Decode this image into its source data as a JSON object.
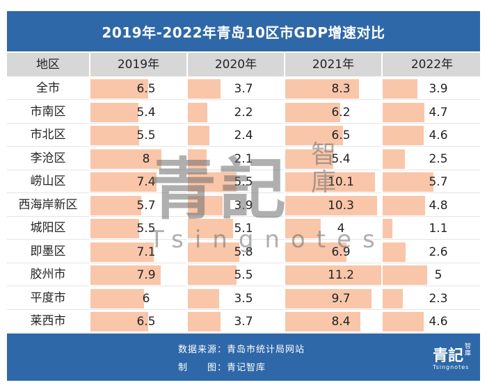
{
  "title": "2019年-2022年青岛10区市GDP增速对比",
  "header": {
    "district": "地区",
    "years": [
      "2019年",
      "2020年",
      "2021年",
      "2022年"
    ]
  },
  "chart_data": {
    "type": "table",
    "title": "2019年-2022年青岛10区市GDP增速对比",
    "columns": [
      "地区",
      "2019年",
      "2020年",
      "2021年",
      "2022年"
    ],
    "categories": [
      "全市",
      "市南区",
      "市北区",
      "李沧区",
      "崂山区",
      "西海岸新区",
      "城阳区",
      "即墨区",
      "胶州市",
      "平度市",
      "莱西市"
    ],
    "series": [
      {
        "name": "2019年",
        "values": [
          "6.5",
          "5.4",
          "5.5",
          "8",
          "7.4",
          "5.7",
          "5.5",
          "7.1",
          "7.9",
          "6",
          "6.5"
        ]
      },
      {
        "name": "2020年",
        "values": [
          "3.7",
          "2.2",
          "2.4",
          "2.1",
          "5.5",
          "3.9",
          "5.1",
          "5.8",
          "5.5",
          "3.5",
          "3.7"
        ]
      },
      {
        "name": "2021年",
        "values": [
          "8.3",
          "6.2",
          "6.5",
          "5.4",
          "10.1",
          "10.3",
          "4",
          "6.9",
          "11.2",
          "9.7",
          "8.4"
        ]
      },
      {
        "name": "2022年",
        "values": [
          "3.9",
          "4.7",
          "4.6",
          "2.5",
          "5.7",
          "4.8",
          "1.1",
          "2.6",
          "5",
          "2.3",
          "4.6"
        ]
      }
    ],
    "bar_color": "#f9c6a9"
  },
  "watermark": {
    "main": "青記",
    "side": "智庫",
    "latin": "Tsingnotes"
  },
  "footer": {
    "source": "数据来源：青岛市统计局网站",
    "maker": "制　　图：青记智库",
    "logo_main": "青記",
    "logo_side": "智庫",
    "logo_latin": "Tsingnotes"
  },
  "colors": {
    "header_bg": "#2f68a8",
    "row_header_bg": "#d7d7d7",
    "bar": "#f9c6a9"
  }
}
